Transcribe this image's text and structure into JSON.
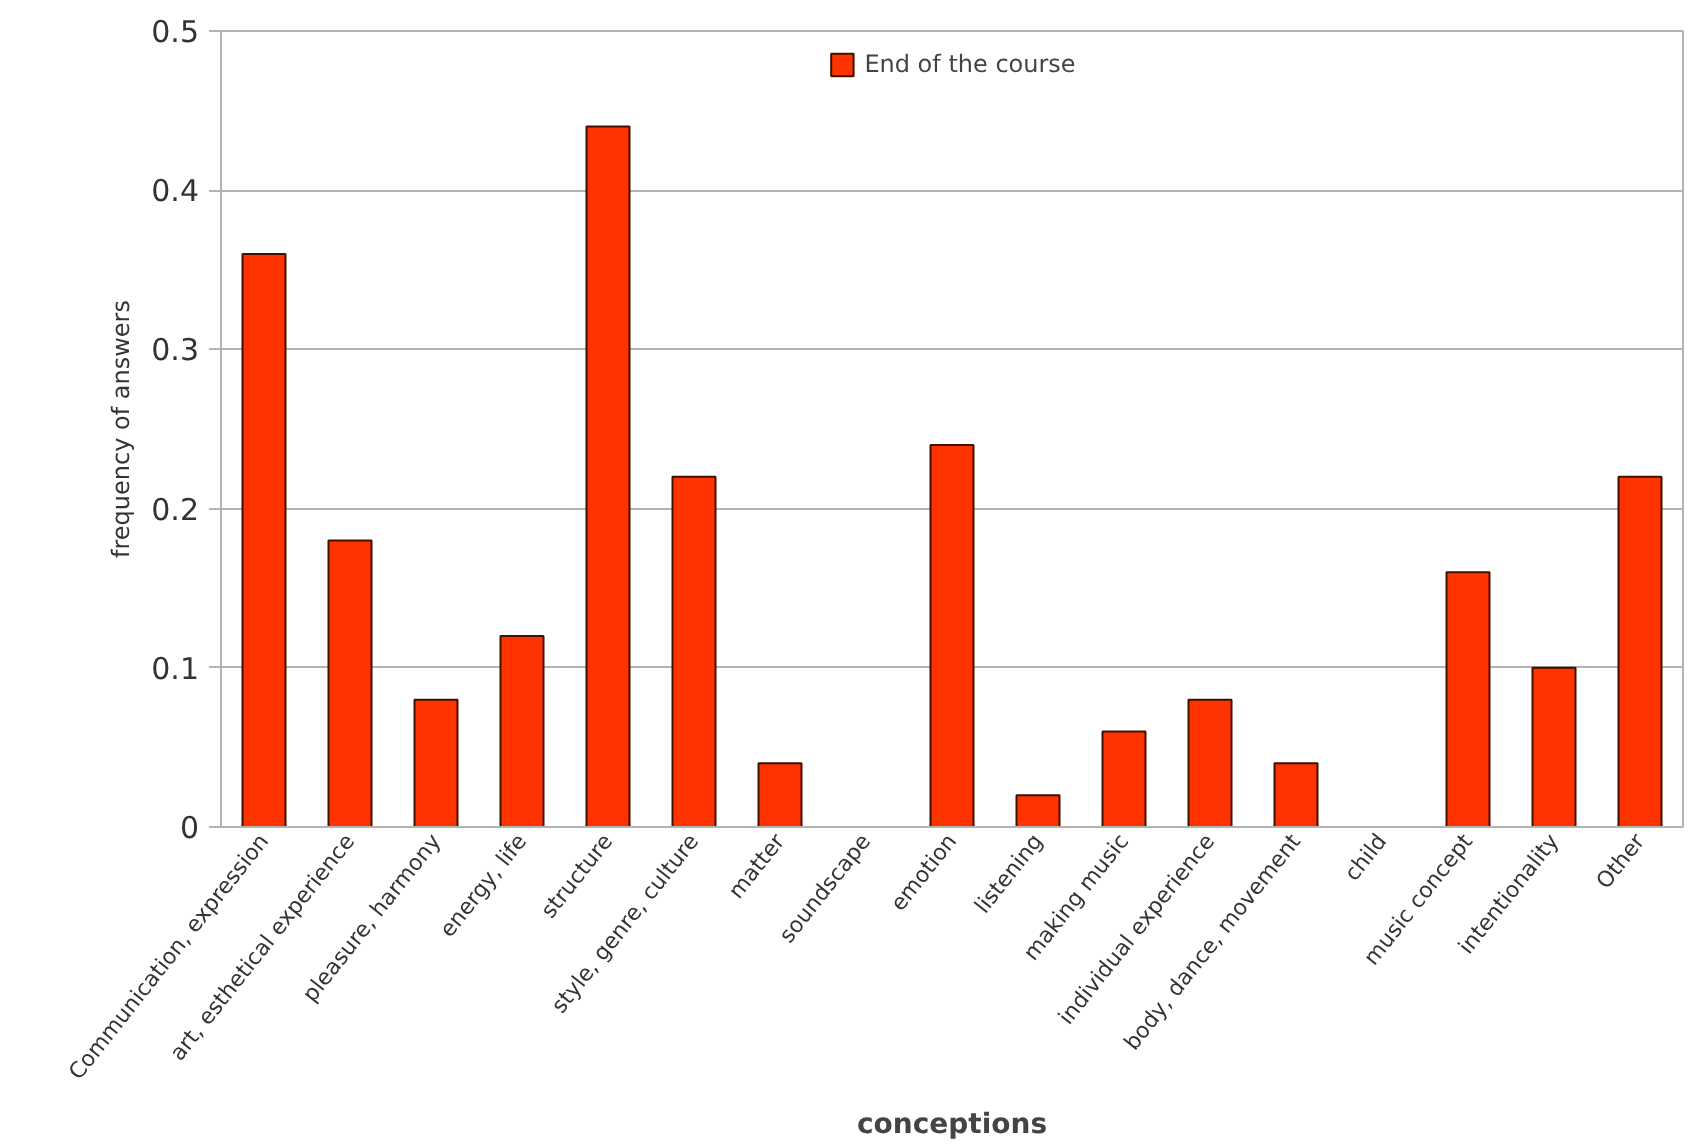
{
  "chart_data": {
    "type": "bar",
    "xlabel": "conceptions",
    "ylabel": "frequency of answers",
    "categories": [
      "Communication, expression",
      "art, esthetical experience",
      "pleasure, harmony",
      "energy, life",
      "structure",
      "style, genre, culture",
      "matter",
      "soundscape",
      "emotion",
      "listening",
      "making music",
      "individual experience",
      "body, dance, movement",
      "child",
      "music concept",
      "intentionality",
      "Other"
    ],
    "series": [
      {
        "name": "End of the course",
        "color": "#ff3300",
        "values": [
          0.36,
          0.18,
          0.08,
          0.12,
          0.44,
          0.22,
          0.04,
          0,
          0.24,
          0.02,
          0.06,
          0.08,
          0.04,
          0,
          0.16,
          0.1,
          0.22
        ]
      }
    ],
    "ylim": [
      0,
      0.5
    ],
    "yticks": [
      0,
      0.1,
      0.2,
      0.3,
      0.4,
      0.5
    ],
    "grid": "y",
    "legend": "top"
  }
}
